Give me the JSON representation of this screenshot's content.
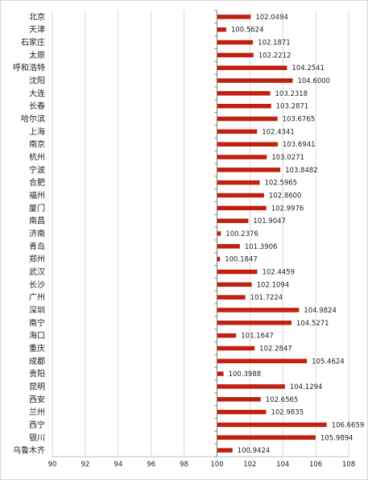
{
  "chart_data": {
    "type": "bar",
    "orientation": "horizontal",
    "title": "",
    "xlabel": "",
    "ylabel": "",
    "xlim": [
      90,
      108
    ],
    "xticks": [
      90,
      92,
      94,
      96,
      98,
      100,
      102,
      104,
      106,
      108
    ],
    "baseline": 100,
    "grid": "vertical",
    "legend": "none",
    "bar_color": "#c0200f",
    "categories": [
      "北京",
      "天津",
      "石家庄",
      "太原",
      "呼和浩特",
      "沈阳",
      "大连",
      "长春",
      "哈尔滨",
      "上海",
      "南京",
      "杭州",
      "宁波",
      "合肥",
      "福州",
      "厦门",
      "南昌",
      "济南",
      "青岛",
      "郑州",
      "武汉",
      "长沙",
      "广州",
      "深圳",
      "南宁",
      "海口",
      "重庆",
      "成都",
      "贵阳",
      "昆明",
      "西安",
      "兰州",
      "西宁",
      "银川",
      "乌鲁木齐"
    ],
    "values": [
      102.0494,
      100.5624,
      102.1871,
      102.2212,
      104.2541,
      104.6,
      103.2318,
      103.2871,
      103.6765,
      102.4341,
      103.6941,
      103.0271,
      103.8482,
      102.5965,
      102.86,
      102.9976,
      101.9047,
      100.2376,
      101.3906,
      100.1847,
      102.4459,
      102.1094,
      101.7224,
      104.9824,
      104.5271,
      101.1647,
      102.2847,
      105.4624,
      100.3988,
      104.1294,
      102.6565,
      102.9835,
      106.6659,
      105.9894,
      100.9424
    ],
    "value_labels": [
      "102.0494",
      "100.5624",
      "102.1871",
      "102.2212",
      "104.2541",
      "104.6000",
      "103.2318",
      "103.2871",
      "103.6765",
      "102.4341",
      "103.6941",
      "103.0271",
      "103.8482",
      "102.5965",
      "102.8600",
      "102.9976",
      "101.9047",
      "100.2376",
      "101.3906",
      "100.1847",
      "102.4459",
      "102.1094",
      "101.7224",
      "104.9824",
      "104.5271",
      "101.1647",
      "102.2847",
      "105.4624",
      "100.3988",
      "104.1294",
      "102.6565",
      "102.9835",
      "106.6659",
      "105.9894",
      "100.9424"
    ]
  }
}
